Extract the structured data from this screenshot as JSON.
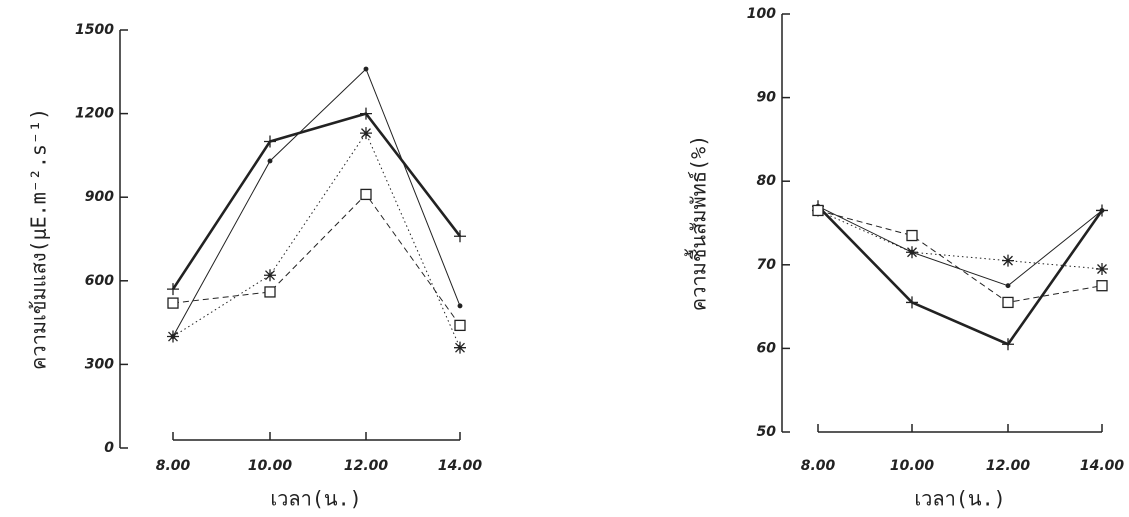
{
  "chart_data": [
    {
      "type": "line",
      "y_label": "ความเข้มแสง(μE.m⁻².s⁻¹)",
      "x_label": "เวลา(น.)",
      "categories": [
        "8.00",
        "10.00",
        "12.00",
        "14.00"
      ],
      "ylim": [
        0,
        1500
      ],
      "yticks": [
        0,
        300,
        600,
        900,
        1200,
        1500
      ],
      "series": [
        {
          "color": "#222222",
          "values": [
            570,
            1100,
            1200,
            760
          ],
          "marker": "plus",
          "dash": "solid",
          "width": 2.6
        },
        {
          "color": "#222222",
          "values": [
            400,
            1030,
            1360,
            510
          ],
          "marker": "dot",
          "dash": "solid",
          "width": 1
        },
        {
          "color": "#222222",
          "values": [
            400,
            620,
            1130,
            360
          ],
          "marker": "star",
          "dash": "dotted",
          "width": 1
        },
        {
          "color": "#222222",
          "values": [
            520,
            560,
            910,
            440
          ],
          "marker": "square",
          "dash": "dashed",
          "width": 1
        }
      ]
    },
    {
      "type": "line",
      "y_label": "ความชื้นสัมพัทธ์(%)",
      "x_label": "เวลา(น.)",
      "categories": [
        "8.00",
        "10.00",
        "12.00",
        "14.00"
      ],
      "ylim": [
        50,
        100
      ],
      "yticks": [
        50,
        60,
        70,
        80,
        90,
        100
      ],
      "series": [
        {
          "color": "#222222",
          "values": [
            77,
            65.5,
            60.5,
            76.5
          ],
          "marker": "plus",
          "dash": "solid",
          "width": 2.6
        },
        {
          "color": "#222222",
          "values": [
            77,
            71.5,
            67.5,
            76.5
          ],
          "marker": "dot",
          "dash": "solid",
          "width": 1
        },
        {
          "color": "#222222",
          "values": [
            76.5,
            71.5,
            70.5,
            69.5
          ],
          "marker": "star",
          "dash": "dotted",
          "width": 1
        },
        {
          "color": "#222222",
          "values": [
            76.5,
            73.5,
            65.5,
            67.5
          ],
          "marker": "square",
          "dash": "dashed",
          "width": 1
        }
      ]
    }
  ]
}
